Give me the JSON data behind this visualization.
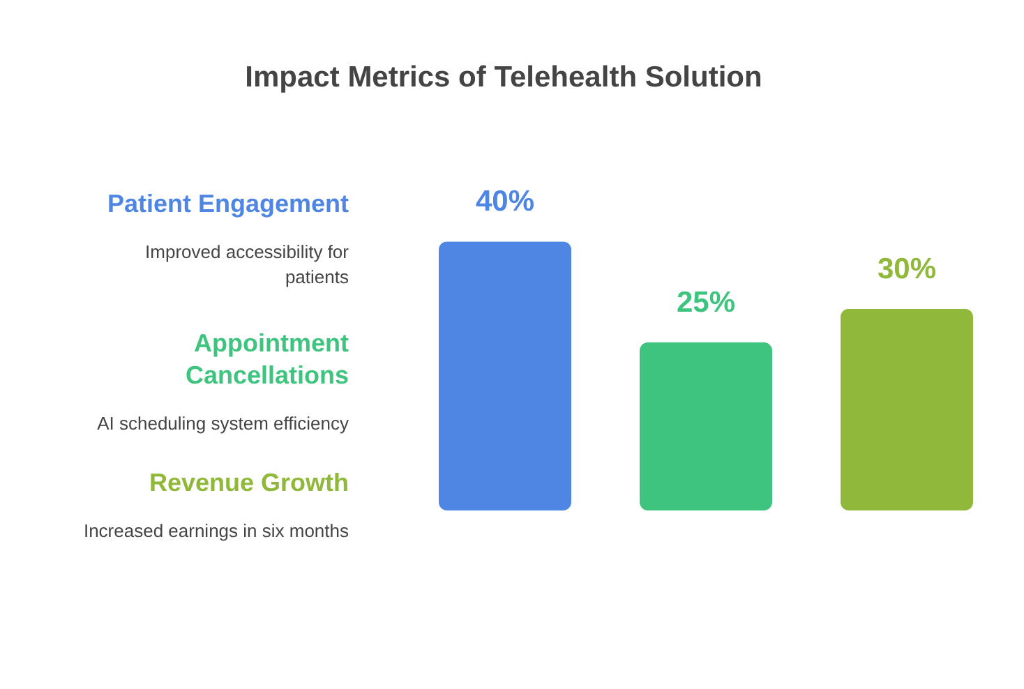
{
  "chart_data": {
    "type": "bar",
    "title": "Impact Metrics of Telehealth Solution",
    "categories": [
      null,
      null,
      null
    ],
    "values": [
      40,
      25,
      30
    ],
    "value_labels": [
      "40%",
      "25%",
      "30%"
    ],
    "colors": [
      "#4f86e3",
      "#3fc47f",
      "#90b83a"
    ],
    "annotations": [
      "Patient Engagement",
      "Improved accessibility for patients",
      "Appointment Cancellations",
      "AI scheduling system efficiency",
      "Revenue Growth",
      "Increased earnings in six months"
    ]
  }
}
